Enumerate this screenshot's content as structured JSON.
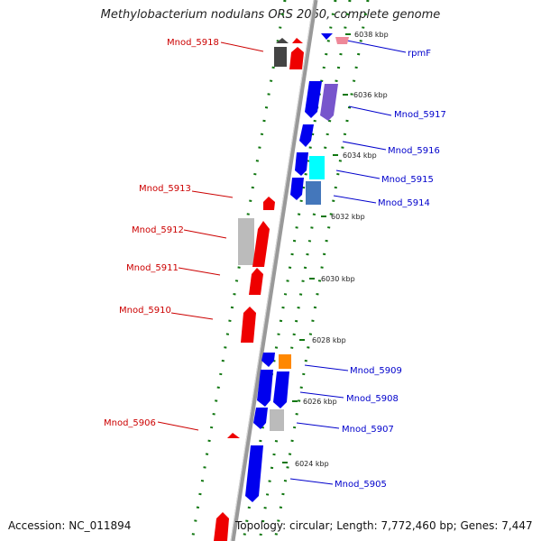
{
  "title": "Methylobacterium nodulans ORS 2060, complete genome",
  "footer": {
    "accession": "Accession: NC_011894",
    "topology": "Topology: circular; Length: 7,772,460 bp; Genes: 7,447"
  },
  "colors": {
    "forward_strand": "#ee0000",
    "reverse_strand": "#0000ee",
    "label_forward": "#cc0000",
    "label_reverse": "#0000cc",
    "backbone": "#999999",
    "tick_dots": "#117711"
  },
  "ticks": [
    {
      "label": "6038 kbp"
    },
    {
      "label": "6036 kbp"
    },
    {
      "label": "6034 kbp"
    },
    {
      "label": "6032 kbp"
    },
    {
      "label": "6030 kbp"
    },
    {
      "label": "6028 kbp"
    },
    {
      "label": "6026 kbp"
    },
    {
      "label": "6024 kbp"
    }
  ],
  "genes_forward": [
    {
      "name": "Mnod_5918"
    },
    {
      "name": "Mnod_5913"
    },
    {
      "name": "Mnod_5912"
    },
    {
      "name": "Mnod_5911"
    },
    {
      "name": "Mnod_5910"
    },
    {
      "name": "Mnod_5906"
    }
  ],
  "genes_reverse": [
    {
      "name": "rpmF"
    },
    {
      "name": "Mnod_5917"
    },
    {
      "name": "Mnod_5916"
    },
    {
      "name": "Mnod_5915"
    },
    {
      "name": "Mnod_5914"
    },
    {
      "name": "Mnod_5909"
    },
    {
      "name": "Mnod_5908"
    },
    {
      "name": "Mnod_5907"
    },
    {
      "name": "Mnod_5905"
    }
  ]
}
